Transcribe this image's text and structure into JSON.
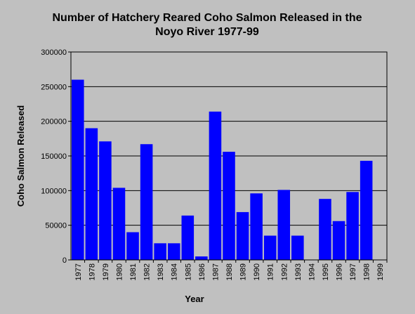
{
  "chart_data": {
    "type": "bar",
    "title_line1": "Number of Hatchery Reared Coho Salmon Released in the",
    "title_line2": "Noyo River 1977-99",
    "xlabel": "Year",
    "ylabel": "Coho Salmon Released",
    "ylim": [
      0,
      300000
    ],
    "yticks": [
      0,
      50000,
      100000,
      150000,
      200000,
      250000,
      300000
    ],
    "ytick_labels": [
      "0",
      "50000",
      "100000",
      "150000",
      "200000",
      "250000",
      "300000"
    ],
    "grid": "horizontal",
    "bar_color": "#0000ff",
    "categories": [
      "1977",
      "1978",
      "1979",
      "1980",
      "1981",
      "1982",
      "1983",
      "1984",
      "1985",
      "1986",
      "1987",
      "1988",
      "1989",
      "1990",
      "1991",
      "1992",
      "1993",
      "1994",
      "1995",
      "1996",
      "1997",
      "1998",
      "1999"
    ],
    "values": [
      260000,
      190000,
      171000,
      104000,
      40000,
      167000,
      24000,
      24000,
      64000,
      5000,
      214000,
      156000,
      69000,
      96000,
      35000,
      101000,
      35000,
      0,
      88000,
      56000,
      98000,
      143000,
      0
    ]
  }
}
